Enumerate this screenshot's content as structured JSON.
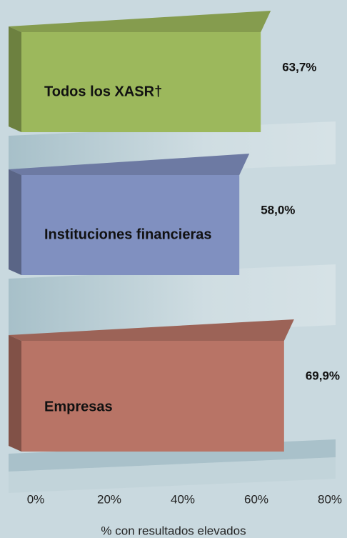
{
  "chart_data": {
    "type": "bar3d",
    "categories": [
      "Todos los XASR†",
      "Instituciones financieras",
      "Empresas"
    ],
    "values": [
      63.7,
      58.0,
      69.9
    ],
    "value_labels": [
      "63,7%",
      "58,0%",
      "69,9%"
    ],
    "colors": [
      "#9cb85c",
      "#8090c0",
      "#b87466"
    ],
    "xlim": [
      0,
      80
    ],
    "xticks": [
      {
        "value": 0,
        "label": "0%"
      },
      {
        "value": 20,
        "label": "20%"
      },
      {
        "value": 40,
        "label": "40%"
      },
      {
        "value": 60,
        "label": "60%"
      },
      {
        "value": 80,
        "label": "80%"
      }
    ],
    "xlabel": "% con resultados elevados"
  }
}
